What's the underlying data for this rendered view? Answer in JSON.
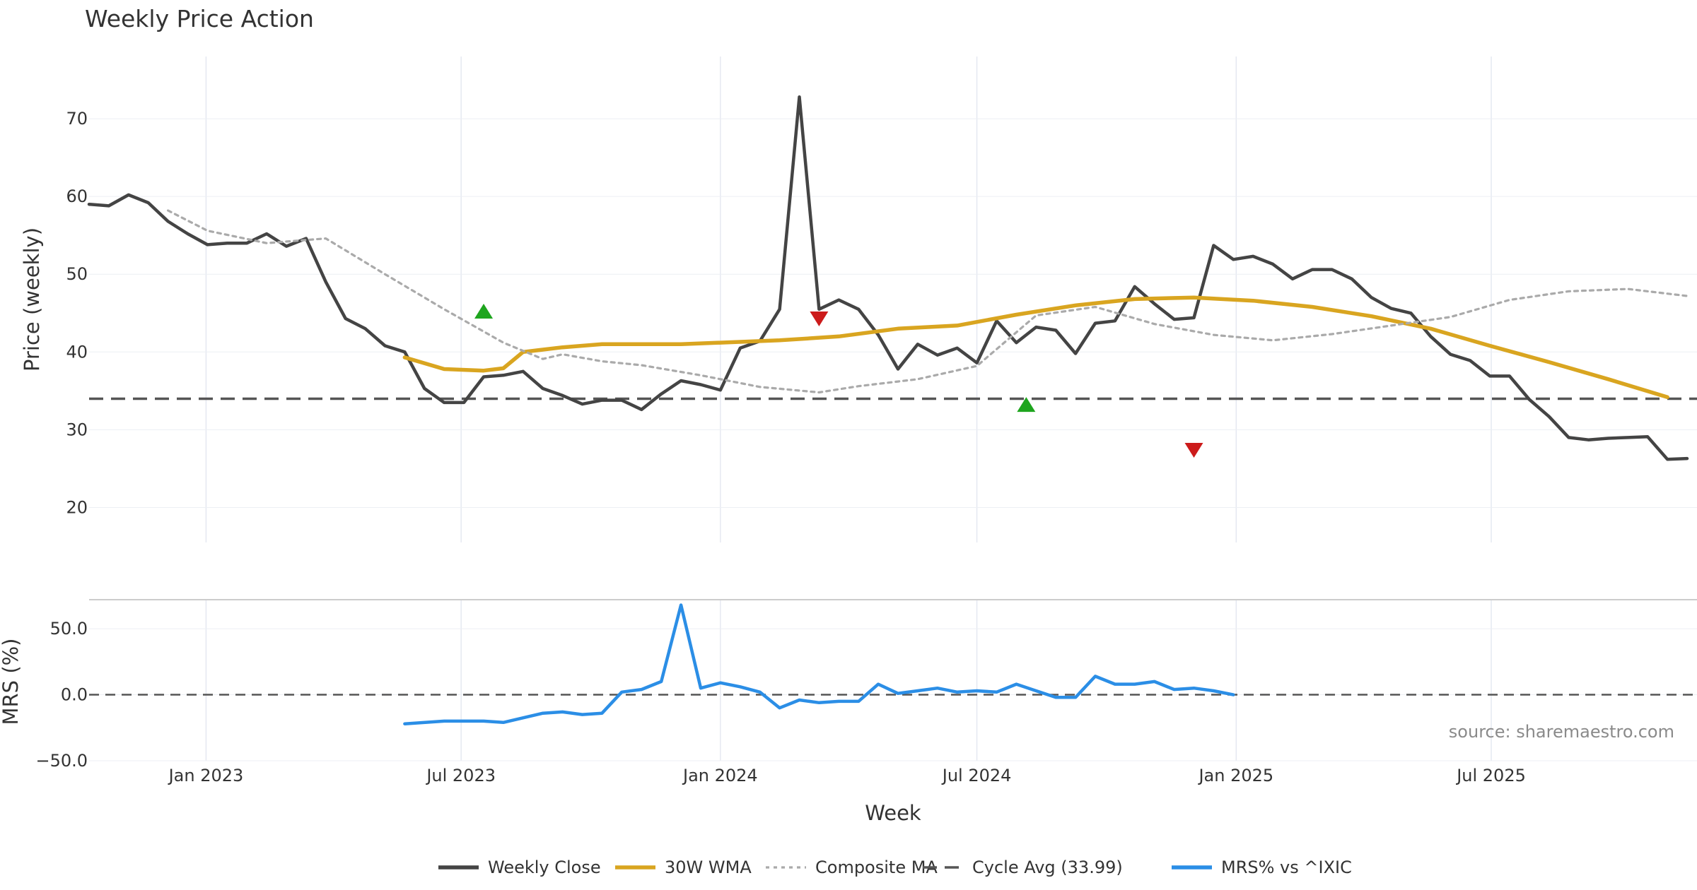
{
  "chart_data": {
    "type": "line",
    "title": "Weekly Price Action",
    "xlabel": "Week",
    "source": "source: sharemaestro.com",
    "x_ticks": [
      "Jan 2023",
      "Jul 2023",
      "Jan 2024",
      "Jul 2024",
      "Jan 2025",
      "Jul 2025"
    ],
    "x_range": [
      "2022-10-10",
      "2025-11-24"
    ],
    "grid": true,
    "legend_position": "bottom",
    "panels": [
      {
        "name": "price",
        "ylabel": "Price (weekly)",
        "ylim": [
          15.5,
          78
        ],
        "yticks": [
          20,
          30,
          40,
          50,
          60,
          70
        ],
        "cycle_avg": 33.99
      },
      {
        "name": "mrs",
        "ylabel": "MRS (%)",
        "ylim": [
          -50,
          72
        ],
        "yticks": [
          "50.0",
          "0.0",
          "−50.0"
        ],
        "yvalues": [
          50,
          0,
          -50
        ],
        "zero_line": 0
      }
    ],
    "series": [
      {
        "name": "Weekly Close",
        "panel": "price",
        "color": "#444444",
        "style": "solid",
        "points": [
          [
            "2022-10-10",
            59.0
          ],
          [
            "2022-10-24",
            58.8
          ],
          [
            "2022-11-07",
            60.2
          ],
          [
            "2022-11-21",
            59.2
          ],
          [
            "2022-12-05",
            56.8
          ],
          [
            "2022-12-19",
            55.2
          ],
          [
            "2023-01-02",
            53.8
          ],
          [
            "2023-01-16",
            54.0
          ],
          [
            "2023-01-30",
            54.0
          ],
          [
            "2023-02-13",
            55.2
          ],
          [
            "2023-02-27",
            53.6
          ],
          [
            "2023-03-13",
            54.6
          ],
          [
            "2023-03-27",
            49.0
          ],
          [
            "2023-04-10",
            44.3
          ],
          [
            "2023-04-24",
            43.0
          ],
          [
            "2023-05-08",
            40.8
          ],
          [
            "2023-05-22",
            40.0
          ],
          [
            "2023-06-05",
            35.3
          ],
          [
            "2023-06-19",
            33.5
          ],
          [
            "2023-07-03",
            33.5
          ],
          [
            "2023-07-17",
            36.8
          ],
          [
            "2023-07-31",
            37.0
          ],
          [
            "2023-08-14",
            37.5
          ],
          [
            "2023-08-28",
            35.3
          ],
          [
            "2023-09-11",
            34.4
          ],
          [
            "2023-09-25",
            33.3
          ],
          [
            "2023-10-09",
            33.8
          ],
          [
            "2023-10-23",
            33.8
          ],
          [
            "2023-11-06",
            32.6
          ],
          [
            "2023-11-20",
            34.6
          ],
          [
            "2023-12-04",
            36.3
          ],
          [
            "2023-12-18",
            35.8
          ],
          [
            "2024-01-01",
            35.1
          ],
          [
            "2024-01-15",
            40.5
          ],
          [
            "2024-01-29",
            41.4
          ],
          [
            "2024-02-12",
            45.5
          ],
          [
            "2024-02-26",
            72.8
          ],
          [
            "2024-03-11",
            45.5
          ],
          [
            "2024-03-25",
            46.7
          ],
          [
            "2024-04-08",
            45.5
          ],
          [
            "2024-04-22",
            42.2
          ],
          [
            "2024-05-06",
            37.8
          ],
          [
            "2024-05-20",
            41.0
          ],
          [
            "2024-06-03",
            39.6
          ],
          [
            "2024-06-17",
            40.5
          ],
          [
            "2024-07-01",
            38.6
          ],
          [
            "2024-07-15",
            44.0
          ],
          [
            "2024-07-29",
            41.2
          ],
          [
            "2024-08-12",
            43.2
          ],
          [
            "2024-08-26",
            42.8
          ],
          [
            "2024-09-09",
            39.8
          ],
          [
            "2024-09-23",
            43.7
          ],
          [
            "2024-10-07",
            44.0
          ],
          [
            "2024-10-21",
            48.4
          ],
          [
            "2024-11-04",
            46.2
          ],
          [
            "2024-11-18",
            44.2
          ],
          [
            "2024-12-02",
            44.4
          ],
          [
            "2024-12-16",
            53.7
          ],
          [
            "2024-12-30",
            51.9
          ],
          [
            "2025-01-13",
            52.3
          ],
          [
            "2025-01-27",
            51.3
          ],
          [
            "2025-02-10",
            49.4
          ],
          [
            "2025-02-24",
            50.6
          ],
          [
            "2025-03-10",
            50.6
          ],
          [
            "2025-03-24",
            49.4
          ],
          [
            "2025-04-07",
            47.0
          ],
          [
            "2025-04-21",
            45.6
          ],
          [
            "2025-05-05",
            45.0
          ],
          [
            "2025-05-19",
            42.0
          ],
          [
            "2025-06-02",
            39.7
          ],
          [
            "2025-06-16",
            38.9
          ],
          [
            "2025-06-30",
            36.9
          ],
          [
            "2025-07-14",
            36.9
          ],
          [
            "2025-07-28",
            33.9
          ],
          [
            "2025-08-11",
            31.7
          ],
          [
            "2025-08-25",
            29.0
          ],
          [
            "2025-09-08",
            28.7
          ],
          [
            "2025-09-22",
            28.9
          ],
          [
            "2025-10-06",
            29.0
          ],
          [
            "2025-10-20",
            29.1
          ],
          [
            "2025-11-03",
            26.2
          ],
          [
            "2025-11-17",
            26.3
          ]
        ]
      },
      {
        "name": "30W WMA",
        "panel": "price",
        "color": "#d9a520",
        "style": "solid",
        "points": [
          [
            "2023-05-22",
            39.3
          ],
          [
            "2023-06-19",
            37.8
          ],
          [
            "2023-07-17",
            37.6
          ],
          [
            "2023-07-31",
            37.9
          ],
          [
            "2023-08-14",
            40.0
          ],
          [
            "2023-09-11",
            40.6
          ],
          [
            "2023-10-09",
            41.0
          ],
          [
            "2023-11-06",
            41.0
          ],
          [
            "2023-12-04",
            41.0
          ],
          [
            "2024-01-01",
            41.2
          ],
          [
            "2024-02-12",
            41.5
          ],
          [
            "2024-03-25",
            42.0
          ],
          [
            "2024-05-06",
            43.0
          ],
          [
            "2024-06-17",
            43.4
          ],
          [
            "2024-07-29",
            44.8
          ],
          [
            "2024-09-09",
            46.0
          ],
          [
            "2024-10-21",
            46.8
          ],
          [
            "2024-12-02",
            47.0
          ],
          [
            "2025-01-13",
            46.6
          ],
          [
            "2025-02-24",
            45.8
          ],
          [
            "2025-04-07",
            44.6
          ],
          [
            "2025-05-19",
            43.0
          ],
          [
            "2025-06-30",
            40.8
          ],
          [
            "2025-08-11",
            38.7
          ],
          [
            "2025-09-22",
            36.5
          ],
          [
            "2025-11-03",
            34.2
          ]
        ]
      },
      {
        "name": "Composite MA",
        "panel": "price",
        "color": "#aaaaaa",
        "style": "dotted",
        "points": [
          [
            "2022-12-05",
            58.2
          ],
          [
            "2023-01-02",
            55.6
          ],
          [
            "2023-02-13",
            54.0
          ],
          [
            "2023-03-27",
            54.6
          ],
          [
            "2023-05-08",
            50.0
          ],
          [
            "2023-06-19",
            45.5
          ],
          [
            "2023-07-31",
            41.2
          ],
          [
            "2023-08-28",
            39.1
          ],
          [
            "2023-09-11",
            39.7
          ],
          [
            "2023-10-09",
            38.8
          ],
          [
            "2023-11-06",
            38.3
          ],
          [
            "2023-12-18",
            37.0
          ],
          [
            "2024-01-29",
            35.5
          ],
          [
            "2024-03-11",
            34.8
          ],
          [
            "2024-04-08",
            35.6
          ],
          [
            "2024-05-20",
            36.5
          ],
          [
            "2024-07-01",
            38.2
          ],
          [
            "2024-08-12",
            44.7
          ],
          [
            "2024-09-23",
            45.8
          ],
          [
            "2024-11-04",
            43.6
          ],
          [
            "2024-12-16",
            42.2
          ],
          [
            "2025-01-27",
            41.5
          ],
          [
            "2025-03-10",
            42.3
          ],
          [
            "2025-04-21",
            43.4
          ],
          [
            "2025-06-02",
            44.5
          ],
          [
            "2025-07-14",
            46.7
          ],
          [
            "2025-08-25",
            47.8
          ],
          [
            "2025-10-06",
            48.1
          ],
          [
            "2025-11-17",
            47.2
          ]
        ]
      },
      {
        "name": "Cycle Avg (33.99)",
        "panel": "price",
        "color": "#555555",
        "style": "dashed",
        "value": 33.99
      },
      {
        "name": "MRS% vs ^IXIC",
        "panel": "mrs",
        "color": "#2b8ee6",
        "style": "solid",
        "points": [
          [
            "2023-05-22",
            -22
          ],
          [
            "2023-06-19",
            -20
          ],
          [
            "2023-07-17",
            -20
          ],
          [
            "2023-07-31",
            -21
          ],
          [
            "2023-08-28",
            -14
          ],
          [
            "2023-09-11",
            -13
          ],
          [
            "2023-09-25",
            -15
          ],
          [
            "2023-10-09",
            -14
          ],
          [
            "2023-10-23",
            2
          ],
          [
            "2023-11-06",
            4
          ],
          [
            "2023-11-20",
            10
          ],
          [
            "2023-12-04",
            68
          ],
          [
            "2023-12-18",
            5
          ],
          [
            "2024-01-01",
            9
          ],
          [
            "2024-01-15",
            6
          ],
          [
            "2024-01-29",
            2
          ],
          [
            "2024-02-12",
            -10
          ],
          [
            "2024-02-26",
            -4
          ],
          [
            "2024-03-11",
            -6
          ],
          [
            "2024-03-25",
            -5
          ],
          [
            "2024-04-08",
            -5
          ],
          [
            "2024-04-22",
            8
          ],
          [
            "2024-05-06",
            1
          ],
          [
            "2024-05-20",
            3
          ],
          [
            "2024-06-03",
            5
          ],
          [
            "2024-06-17",
            2
          ],
          [
            "2024-07-01",
            3
          ],
          [
            "2024-07-15",
            2
          ],
          [
            "2024-07-29",
            8
          ],
          [
            "2024-08-12",
            3
          ],
          [
            "2024-08-26",
            -2
          ],
          [
            "2024-09-09",
            -2
          ],
          [
            "2024-09-23",
            14
          ],
          [
            "2024-10-07",
            8
          ],
          [
            "2024-10-21",
            8
          ],
          [
            "2024-11-04",
            10
          ],
          [
            "2024-11-18",
            4
          ],
          [
            "2024-12-02",
            5
          ],
          [
            "2024-12-16",
            3
          ],
          [
            "2024-12-30",
            0
          ]
        ]
      }
    ],
    "markers": [
      {
        "type": "buy",
        "date": "2023-07-17",
        "value": 45.2,
        "color": "#1ea51e"
      },
      {
        "type": "sell",
        "date": "2024-03-11",
        "value": 44.3,
        "color": "#cc1b1b"
      },
      {
        "type": "buy",
        "date": "2024-08-05",
        "value": 33.2,
        "color": "#1ea51e"
      },
      {
        "type": "sell",
        "date": "2024-12-02",
        "value": 27.4,
        "color": "#cc1b1b"
      }
    ]
  }
}
